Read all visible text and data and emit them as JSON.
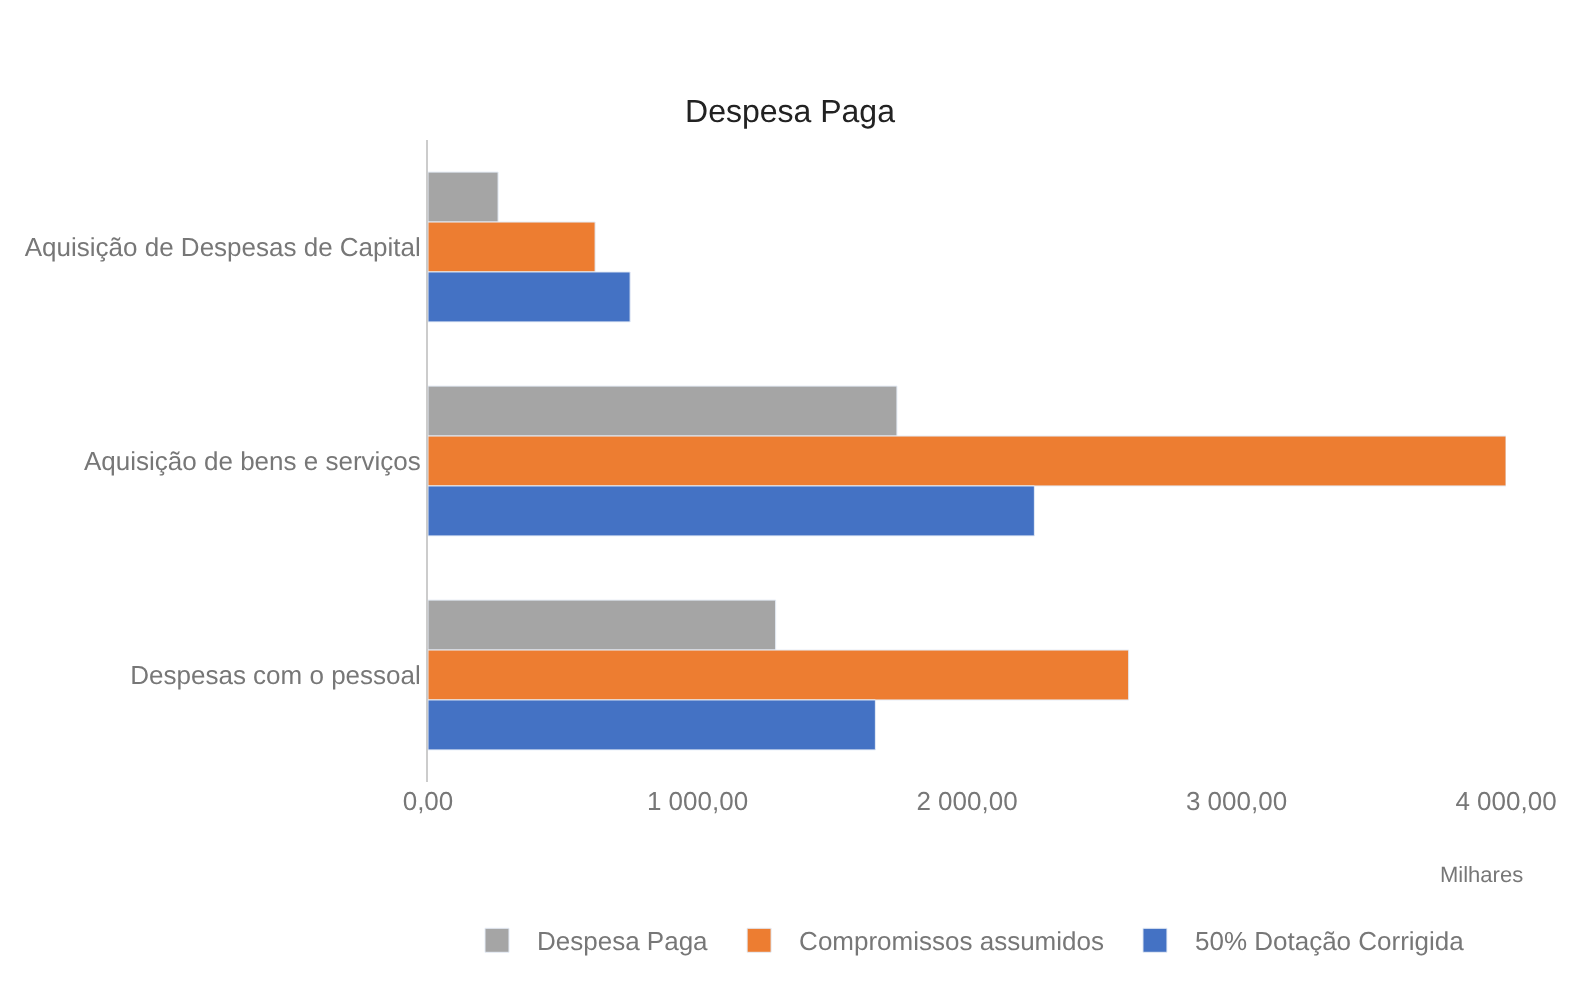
{
  "chart_data": {
    "type": "bar",
    "orientation": "horizontal",
    "title": "Despesa Paga",
    "xlabel": "Milhares",
    "categories": [
      "Aquisição de Despesas de Capital",
      "Aquisição de bens e serviços",
      "Despesas com o pessoal"
    ],
    "series": [
      {
        "name": "Despesa Paga",
        "color": "#a5a5a5",
        "values": [
          260,
          1740,
          1290
        ]
      },
      {
        "name": "Compromissos assumidos",
        "color": "#ed7d31",
        "values": [
          620,
          4000,
          2600
        ]
      },
      {
        "name": "50% Dotação Corrigida",
        "color": "#4472c4",
        "values": [
          750,
          2250,
          1660
        ]
      }
    ],
    "xlim": [
      0,
      4000
    ],
    "xticks": [
      {
        "value": 0,
        "label": "0,00"
      },
      {
        "value": 1000,
        "label": "1 000,00"
      },
      {
        "value": 2000,
        "label": "2 000,00"
      },
      {
        "value": 3000,
        "label": "3 000,00"
      },
      {
        "value": 4000,
        "label": "4 000,00"
      }
    ],
    "grid": false,
    "legend": "bottom"
  }
}
